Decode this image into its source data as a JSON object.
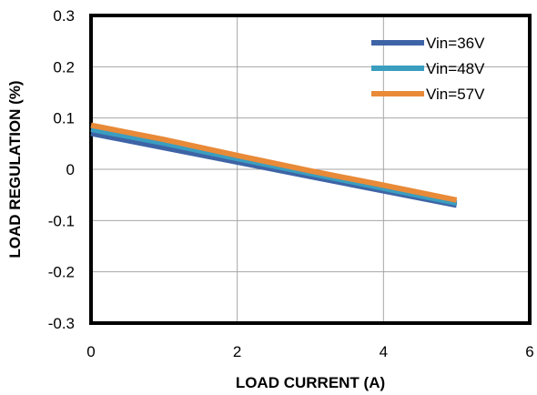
{
  "chart_data": {
    "type": "line",
    "title": "",
    "xlabel": "LOAD CURRENT  (A)",
    "ylabel": "LOAD REGULATION  (%)",
    "xlim": [
      0,
      6
    ],
    "ylim": [
      -0.3,
      0.3
    ],
    "xticks": [
      "0",
      "2",
      "4",
      "6"
    ],
    "yticks": [
      "0.3",
      "0.2",
      "0.1",
      "0",
      "-0.1",
      "-0.2",
      "-0.3"
    ],
    "grid": true,
    "legend_position": "top-right",
    "series": [
      {
        "name": "Vin=36V",
        "color": "#3e64a6",
        "x": [
          0,
          1,
          2,
          3,
          4,
          5
        ],
        "y": [
          0.07,
          0.042,
          0.014,
          -0.014,
          -0.042,
          -0.07
        ]
      },
      {
        "name": "Vin=48V",
        "color": "#3a9ec0",
        "x": [
          0,
          1,
          2,
          3,
          4,
          5
        ],
        "y": [
          0.078,
          0.051,
          0.021,
          -0.008,
          -0.037,
          -0.066
        ]
      },
      {
        "name": "Vin=57V",
        "color": "#e88a38",
        "x": [
          0,
          1,
          2,
          3,
          4,
          5
        ],
        "y": [
          0.086,
          0.058,
          0.027,
          -0.003,
          -0.031,
          -0.06
        ]
      }
    ]
  }
}
